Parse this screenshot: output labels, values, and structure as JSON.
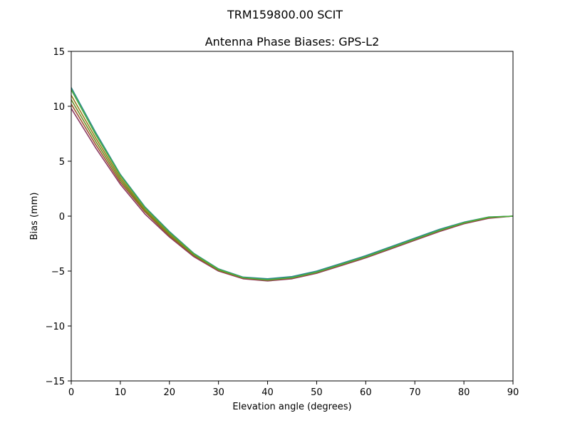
{
  "figure": {
    "suptitle": "TRM159800.00     SCIT",
    "title": "Antenna Phase Biases: GPS-L2"
  },
  "chart_data": {
    "type": "line",
    "xlabel": "Elevation angle (degrees)",
    "ylabel": "Bias (mm)",
    "xlim": [
      0,
      90
    ],
    "ylim": [
      -15,
      15
    ],
    "xticks": [
      0,
      10,
      20,
      30,
      40,
      50,
      60,
      70,
      80,
      90
    ],
    "yticks": [
      -15,
      -10,
      -5,
      0,
      5,
      10,
      15
    ],
    "grid": false,
    "legend": "none",
    "x": [
      0,
      5,
      10,
      15,
      20,
      25,
      30,
      35,
      40,
      45,
      50,
      55,
      60,
      65,
      70,
      75,
      80,
      85,
      90
    ],
    "series": [
      {
        "color": "#8b3a62",
        "values": [
          9.8,
          6.2,
          2.9,
          0.2,
          -1.9,
          -3.7,
          -5.0,
          -5.7,
          -5.9,
          -5.7,
          -5.2,
          -4.5,
          -3.8,
          -3.0,
          -2.2,
          -1.4,
          -0.7,
          -0.2,
          0.0
        ]
      },
      {
        "color": "#a0522d",
        "values": [
          10.2,
          6.5,
          3.1,
          0.4,
          -1.8,
          -3.6,
          -4.95,
          -5.65,
          -5.85,
          -5.65,
          -5.15,
          -4.45,
          -3.75,
          -2.95,
          -2.15,
          -1.35,
          -0.65,
          -0.15,
          0.0
        ]
      },
      {
        "color": "#6b8e23",
        "values": [
          10.6,
          6.8,
          3.3,
          0.5,
          -1.7,
          -3.55,
          -4.9,
          -5.6,
          -5.8,
          -5.6,
          -5.1,
          -4.4,
          -3.7,
          -2.9,
          -2.1,
          -1.3,
          -0.62,
          -0.12,
          0.0
        ]
      },
      {
        "color": "#9a7b1c",
        "values": [
          11.0,
          7.1,
          3.5,
          0.6,
          -1.6,
          -3.5,
          -4.85,
          -5.6,
          -5.75,
          -5.55,
          -5.05,
          -4.35,
          -3.65,
          -2.85,
          -2.05,
          -1.25,
          -0.6,
          -0.1,
          0.0
        ]
      },
      {
        "color": "#2e8b8b",
        "values": [
          11.7,
          7.6,
          3.8,
          0.85,
          -1.4,
          -3.4,
          -4.8,
          -5.55,
          -5.7,
          -5.5,
          -5.0,
          -4.3,
          -3.6,
          -2.8,
          -2.0,
          -1.2,
          -0.55,
          -0.08,
          0.0
        ]
      },
      {
        "color": "#4caf3c",
        "values": [
          11.5,
          7.4,
          3.7,
          0.75,
          -1.5,
          -3.45,
          -4.85,
          -5.6,
          -5.8,
          -5.6,
          -5.1,
          -4.4,
          -3.7,
          -2.9,
          -2.1,
          -1.3,
          -0.6,
          -0.1,
          0.0
        ]
      }
    ]
  }
}
